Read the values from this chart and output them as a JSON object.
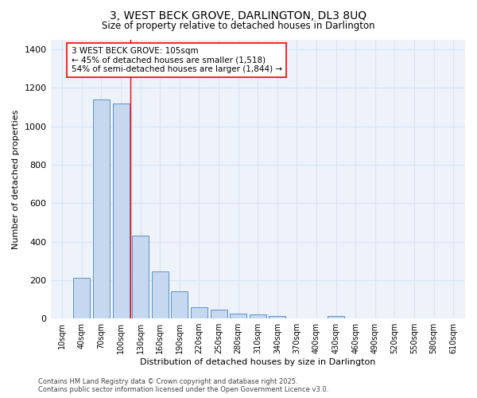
{
  "title1": "3, WEST BECK GROVE, DARLINGTON, DL3 8UQ",
  "title2": "Size of property relative to detached houses in Darlington",
  "xlabel": "Distribution of detached houses by size in Darlington",
  "ylabel": "Number of detached properties",
  "bar_categories": [
    "10sqm",
    "40sqm",
    "70sqm",
    "100sqm",
    "130sqm",
    "160sqm",
    "190sqm",
    "220sqm",
    "250sqm",
    "280sqm",
    "310sqm",
    "340sqm",
    "370sqm",
    "400sqm",
    "430sqm",
    "460sqm",
    "490sqm",
    "520sqm",
    "550sqm",
    "580sqm",
    "610sqm"
  ],
  "bar_values": [
    0,
    210,
    1140,
    1120,
    430,
    245,
    140,
    60,
    45,
    25,
    20,
    15,
    0,
    0,
    15,
    0,
    0,
    0,
    0,
    0,
    0
  ],
  "bar_color": "#c5d8f0",
  "bar_edge_color": "#6090c8",
  "bar_width": 0.85,
  "red_line_x": 3.5,
  "ylim": [
    0,
    1450
  ],
  "yticks": [
    0,
    200,
    400,
    600,
    800,
    1000,
    1200,
    1400
  ],
  "annotation_text": "3 WEST BECK GROVE: 105sqm\n← 45% of detached houses are smaller (1,518)\n54% of semi-detached houses are larger (1,844) →",
  "bg_color": "#edf2fb",
  "fig_bg_color": "#ffffff",
  "grid_color": "#d8e4f5",
  "footer_line1": "Contains HM Land Registry data © Crown copyright and database right 2025.",
  "footer_line2": "Contains public sector information licensed under the Open Government Licence v3.0."
}
